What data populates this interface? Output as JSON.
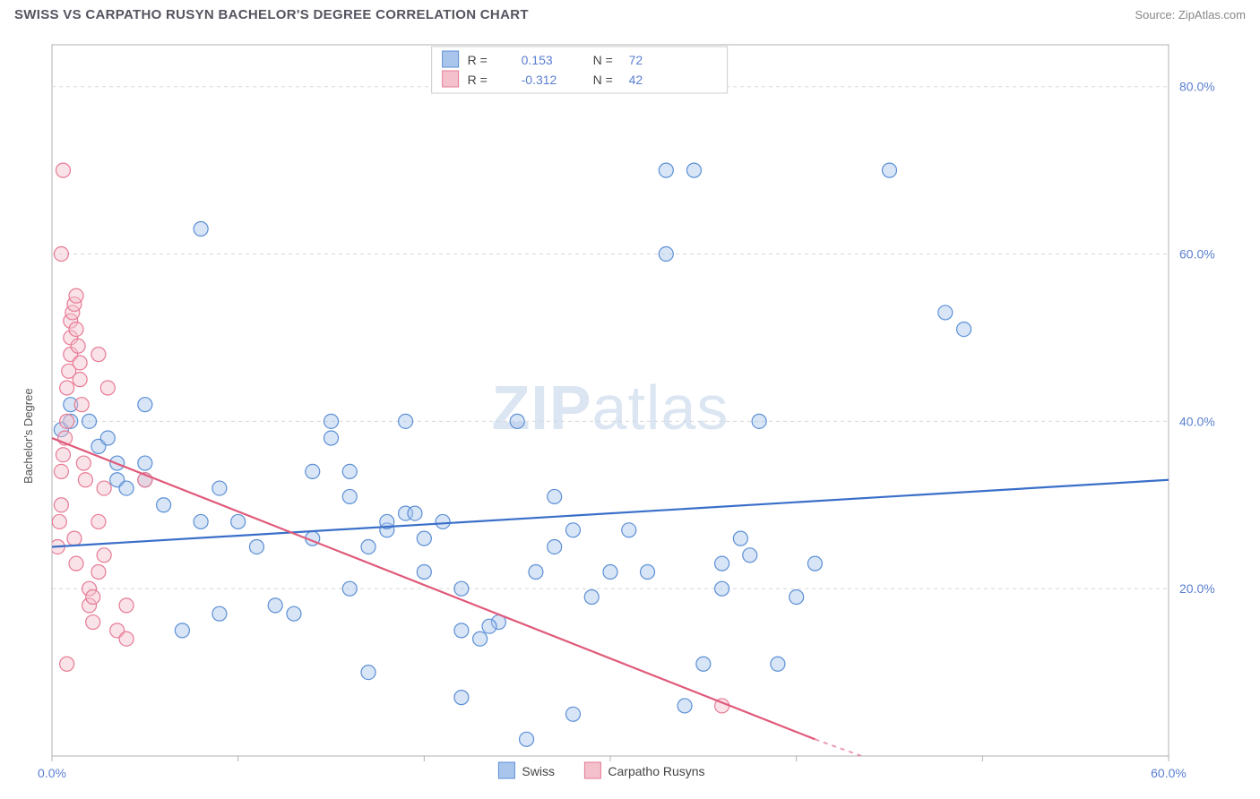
{
  "header": {
    "title": "SWISS VS CARPATHO RUSYN BACHELOR'S DEGREE CORRELATION CHART",
    "source_prefix": "Source: ",
    "source_name": "ZipAtlas.com"
  },
  "watermark": {
    "part1": "ZIP",
    "part2": "atlas",
    "color": "#c9d9ec"
  },
  "chart": {
    "type": "scatter",
    "background_color": "#ffffff",
    "grid_color": "#d8d8d8",
    "axis_color": "#b0b0b0",
    "label_color": "#5b7fd1",
    "ylabel": "Bachelor's Degree",
    "xlim": [
      0,
      60
    ],
    "ylim": [
      0,
      85
    ],
    "xticks": [
      0,
      10,
      20,
      30,
      40,
      50,
      60
    ],
    "xtick_labels": [
      "0.0%",
      "",
      "",
      "",
      "",
      "",
      "60.0%"
    ],
    "yticks": [
      20,
      40,
      60,
      80
    ],
    "ytick_labels": [
      "20.0%",
      "40.0%",
      "60.0%",
      "80.0%"
    ],
    "series": [
      {
        "name": "Swiss",
        "fill": "#a9c5ec",
        "stroke": "#5b8fd6",
        "r_label": "R = ",
        "r_value": "0.153",
        "n_label": "N = ",
        "n_value": "72",
        "trend": {
          "x1": 0,
          "y1": 25,
          "x2": 60,
          "y2": 33,
          "color": "#3a6fc9"
        },
        "points": [
          [
            0.5,
            39
          ],
          [
            1,
            40
          ],
          [
            1,
            42
          ],
          [
            2,
            40
          ],
          [
            2.5,
            37
          ],
          [
            3,
            38
          ],
          [
            3.5,
            33
          ],
          [
            3.5,
            35
          ],
          [
            4,
            32
          ],
          [
            5,
            33
          ],
          [
            5,
            35
          ],
          [
            5,
            42
          ],
          [
            6,
            30
          ],
          [
            7,
            15
          ],
          [
            8,
            63
          ],
          [
            8,
            28
          ],
          [
            9,
            32
          ],
          [
            9,
            17
          ],
          [
            10,
            28
          ],
          [
            11,
            25
          ],
          [
            12,
            18
          ],
          [
            13,
            17
          ],
          [
            14,
            34
          ],
          [
            14,
            26
          ],
          [
            15,
            40
          ],
          [
            15,
            38
          ],
          [
            16,
            20
          ],
          [
            16,
            34
          ],
          [
            16,
            31
          ],
          [
            17,
            10
          ],
          [
            17,
            25
          ],
          [
            18,
            27
          ],
          [
            18,
            28
          ],
          [
            19,
            29
          ],
          [
            19.5,
            29
          ],
          [
            19,
            40
          ],
          [
            20,
            26
          ],
          [
            20,
            22
          ],
          [
            21,
            28
          ],
          [
            22,
            7
          ],
          [
            22,
            20
          ],
          [
            22,
            15
          ],
          [
            23,
            14
          ],
          [
            24,
            16
          ],
          [
            25,
            40
          ],
          [
            26,
            22
          ],
          [
            27,
            31
          ],
          [
            27,
            25
          ],
          [
            28,
            27
          ],
          [
            28,
            5
          ],
          [
            29,
            19
          ],
          [
            30,
            22
          ],
          [
            31,
            27
          ],
          [
            32,
            22
          ],
          [
            33,
            60
          ],
          [
            33,
            70
          ],
          [
            34,
            6
          ],
          [
            34.5,
            70
          ],
          [
            35,
            11
          ],
          [
            36,
            20
          ],
          [
            36,
            23
          ],
          [
            37,
            26
          ],
          [
            37.5,
            24
          ],
          [
            38,
            40
          ],
          [
            39,
            11
          ],
          [
            40,
            19
          ],
          [
            41,
            23
          ],
          [
            45,
            70
          ],
          [
            48,
            53
          ],
          [
            49,
            51
          ],
          [
            25.5,
            2
          ],
          [
            23.5,
            15.5
          ]
        ]
      },
      {
        "name": "Carpatho Rusyns",
        "fill": "#f3c0cb",
        "stroke": "#e77a95",
        "r_label": "R = ",
        "r_value": "-0.312",
        "n_label": "N = ",
        "n_value": "42",
        "trend": {
          "x1": 0,
          "y1": 38,
          "x2": 41,
          "y2": 2,
          "color": "#e05a7a"
        },
        "trend_ext": {
          "x1": 41,
          "y1": 2,
          "x2": 46,
          "y2": -2
        },
        "points": [
          [
            0.3,
            25
          ],
          [
            0.4,
            28
          ],
          [
            0.5,
            30
          ],
          [
            0.5,
            34
          ],
          [
            0.6,
            36
          ],
          [
            0.7,
            38
          ],
          [
            0.8,
            40
          ],
          [
            0.8,
            44
          ],
          [
            0.9,
            46
          ],
          [
            1,
            48
          ],
          [
            1,
            50
          ],
          [
            1,
            52
          ],
          [
            1.1,
            53
          ],
          [
            1.2,
            54
          ],
          [
            1.3,
            55
          ],
          [
            1.3,
            51
          ],
          [
            1.4,
            49
          ],
          [
            1.5,
            47
          ],
          [
            1.5,
            45
          ],
          [
            1.6,
            42
          ],
          [
            1.7,
            35
          ],
          [
            1.8,
            33
          ],
          [
            0.5,
            60
          ],
          [
            0.6,
            70
          ],
          [
            2,
            20
          ],
          [
            2,
            18
          ],
          [
            2.2,
            16
          ],
          [
            2.2,
            19
          ],
          [
            2.5,
            22
          ],
          [
            2.5,
            28
          ],
          [
            2.8,
            32
          ],
          [
            3,
            44
          ],
          [
            0.8,
            11
          ],
          [
            3.5,
            15
          ],
          [
            4,
            14
          ],
          [
            4,
            18
          ],
          [
            5,
            33
          ],
          [
            2.5,
            48
          ],
          [
            1.2,
            26
          ],
          [
            1.3,
            23
          ],
          [
            36,
            6
          ],
          [
            2.8,
            24
          ]
        ]
      }
    ]
  },
  "bottom_legend": [
    {
      "label": "Swiss",
      "fill": "#a9c5ec",
      "stroke": "#5b8fd6"
    },
    {
      "label": "Carpatho Rusyns",
      "fill": "#f3c0cb",
      "stroke": "#e77a95"
    }
  ]
}
